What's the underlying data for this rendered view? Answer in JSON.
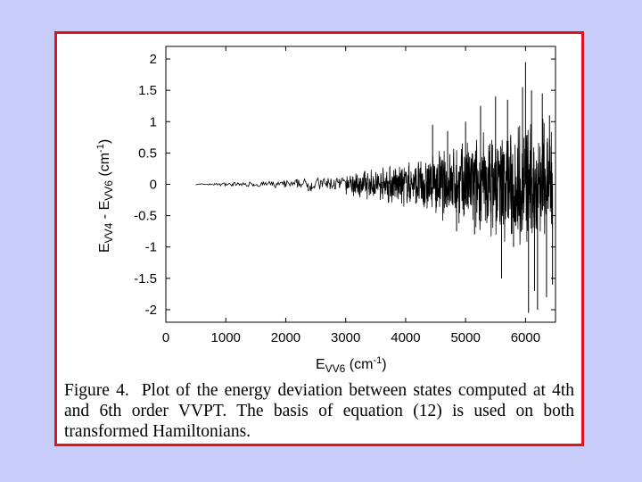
{
  "caption": {
    "figure_label": "Figure 4.",
    "text": "Plot of the energy deviation between states computed at 4th and 6th order VVPT. The basis of equation (12) is used on both transformed Hamiltonians."
  },
  "colors": {
    "background": "#c8ccf8",
    "frame_border": "#e0141c",
    "series": "#000000"
  },
  "chart_data": {
    "type": "line",
    "title": "",
    "xlabel": {
      "main": "E",
      "sub": "VV6",
      "unit_open": " (cm",
      "sup": "-1",
      "unit_close": ")"
    },
    "ylabel": {
      "main": "E",
      "sub1": "VV4",
      "middle": " - E",
      "sub2": "VV6",
      "unit_open": " (cm",
      "sup": "-1",
      "unit_close": ")"
    },
    "xlim": [
      0,
      6500
    ],
    "ylim": [
      -2.2,
      2.2
    ],
    "x_ticks": [
      0,
      1000,
      2000,
      3000,
      4000,
      5000,
      6000
    ],
    "y_ticks": [
      2,
      1.5,
      1,
      0.5,
      0,
      -0.5,
      -1,
      -1.5,
      -2
    ],
    "x_tick_labels": [
      "0",
      "1000",
      "2000",
      "3000",
      "4000",
      "5000",
      "6000"
    ],
    "y_tick_labels": [
      "2",
      "1.5",
      "1",
      "0.5",
      "0",
      "-0.5",
      "-1",
      "-1.5",
      "-2"
    ],
    "grid": false,
    "legend": false,
    "envelope": [
      {
        "x": 500,
        "amp": 0.01
      },
      {
        "x": 1000,
        "amp": 0.03
      },
      {
        "x": 1500,
        "amp": 0.05
      },
      {
        "x": 2000,
        "amp": 0.08
      },
      {
        "x": 2500,
        "amp": 0.12
      },
      {
        "x": 3000,
        "amp": 0.18
      },
      {
        "x": 3500,
        "amp": 0.28
      },
      {
        "x": 4000,
        "amp": 0.38
      },
      {
        "x": 4500,
        "amp": 0.55
      },
      {
        "x": 5000,
        "amp": 0.75
      },
      {
        "x": 5500,
        "amp": 0.95
      },
      {
        "x": 6000,
        "amp": 1.1
      },
      {
        "x": 6450,
        "amp": 1.2
      }
    ],
    "spikes": [
      {
        "x": 4450,
        "y": 0.95
      },
      {
        "x": 4700,
        "y": 0.85
      },
      {
        "x": 4850,
        "y": -0.75
      },
      {
        "x": 5000,
        "y": 1.0
      },
      {
        "x": 5150,
        "y": -0.8
      },
      {
        "x": 5250,
        "y": 1.25
      },
      {
        "x": 5500,
        "y": 1.4
      },
      {
        "x": 5600,
        "y": -1.5
      },
      {
        "x": 5700,
        "y": 1.35
      },
      {
        "x": 5800,
        "y": -1.0
      },
      {
        "x": 5950,
        "y": 1.55
      },
      {
        "x": 6000,
        "y": 1.95
      },
      {
        "x": 6050,
        "y": -2.05
      },
      {
        "x": 6100,
        "y": 1.5
      },
      {
        "x": 6150,
        "y": -1.7
      },
      {
        "x": 6200,
        "y": -2.0
      },
      {
        "x": 6280,
        "y": 1.45
      },
      {
        "x": 6350,
        "y": -1.8
      },
      {
        "x": 6400,
        "y": 1.1
      },
      {
        "x": 6450,
        "y": -1.6
      }
    ]
  }
}
